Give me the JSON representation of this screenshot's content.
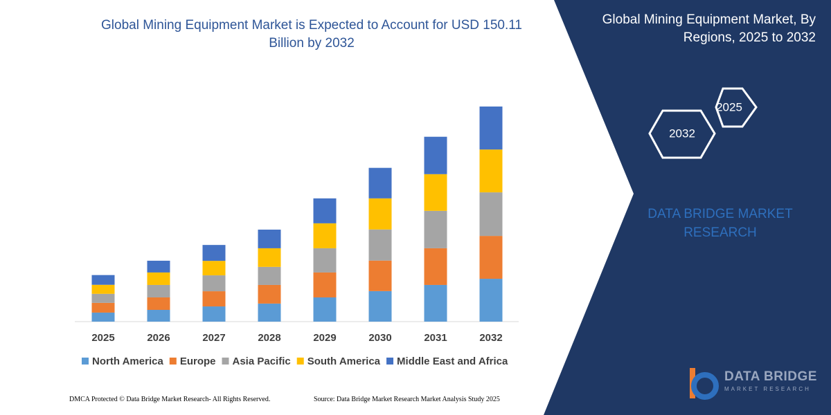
{
  "chart_data": {
    "type": "stacked-bar",
    "title": "Global Mining Equipment Market is Expected to Account for USD 150.11 Billion by 2032",
    "categories": [
      "2025",
      "2026",
      "2027",
      "2028",
      "2029",
      "2030",
      "2031",
      "2032"
    ],
    "series": [
      {
        "name": "North America",
        "color": "#5b9bd5",
        "values": [
          6.3,
          8.2,
          10.6,
          12.6,
          16.9,
          21.3,
          25.6,
          29.9
        ]
      },
      {
        "name": "Europe",
        "color": "#ed7d31",
        "values": [
          6.8,
          8.7,
          10.6,
          13.0,
          17.4,
          21.3,
          25.6,
          29.9
        ]
      },
      {
        "name": "Asia Pacific",
        "color": "#a5a5a5",
        "values": [
          6.3,
          8.7,
          11.1,
          12.6,
          16.9,
          21.7,
          26.1,
          30.4
        ]
      },
      {
        "name": "South America",
        "color": "#ffc000",
        "values": [
          6.3,
          8.7,
          10.1,
          13.0,
          17.4,
          21.7,
          25.6,
          29.9
        ]
      },
      {
        "name": "Middle East and Africa",
        "color": "#4472c4",
        "values": [
          6.8,
          8.2,
          11.1,
          13.0,
          17.4,
          21.3,
          26.1,
          30.0
        ]
      }
    ]
  },
  "panel": {
    "title": "Global Mining Equipment Market, By Regions, 2025 to 2032",
    "hexagons": [
      "2025",
      "2032"
    ],
    "brand": "DATA BRIDGE MARKET RESEARCH",
    "logo_name": "DATA BRIDGE",
    "logo_tagline": "MARKET RESEARCH"
  },
  "footer": {
    "left": "DMCA Protected © Data Bridge Market Research- All Rights Reserved.",
    "right": "Source: Data Bridge Market Research Market Analysis Study 2025"
  }
}
